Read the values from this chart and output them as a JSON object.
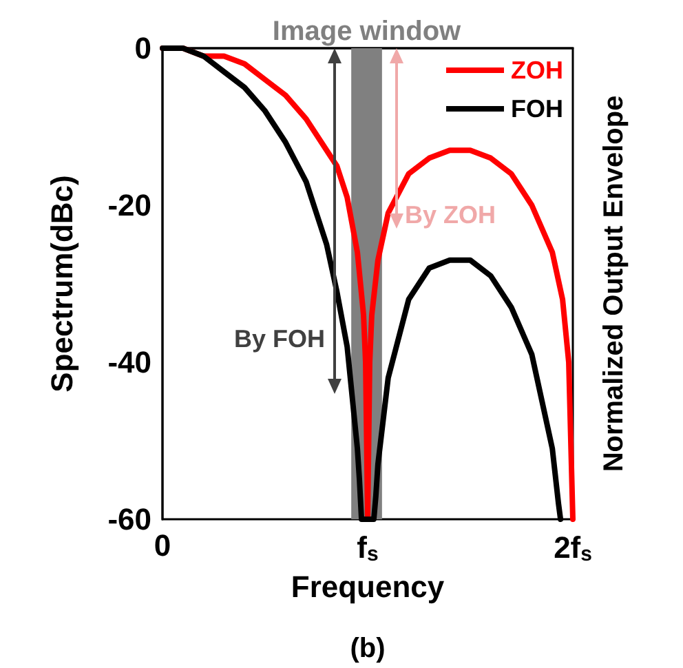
{
  "chart_data": {
    "type": "line",
    "xlabel": "Frequency",
    "ylabel": "Spectrum(dBc)",
    "y2label": "Normalized Output Envelope",
    "x": [
      0,
      0.1,
      0.2,
      0.3,
      0.4,
      0.5,
      0.6,
      0.7,
      0.8,
      0.85,
      0.9,
      0.95,
      0.98,
      0.99,
      1.0,
      1.01,
      1.02,
      1.05,
      1.1,
      1.2,
      1.3,
      1.4,
      1.5,
      1.6,
      1.7,
      1.8,
      1.9,
      1.95,
      1.98,
      2.0
    ],
    "series": [
      {
        "name": "ZOH",
        "color": "#ff0000",
        "values": [
          0,
          0,
          -1,
          -1,
          -2,
          -4,
          -6,
          -9,
          -13,
          -15,
          -19,
          -26,
          -34,
          -40,
          -60,
          -40,
          -34,
          -27,
          -21,
          -16,
          -14,
          -13,
          -13,
          -14,
          -16,
          -20,
          -26,
          -32,
          -40,
          -60
        ]
      },
      {
        "name": "FOH",
        "color": "#000000",
        "x": [
          0,
          0.1,
          0.2,
          0.3,
          0.4,
          0.5,
          0.6,
          0.7,
          0.8,
          0.85,
          0.9,
          0.95,
          0.96,
          0.97,
          1.03,
          1.04,
          1.05,
          1.1,
          1.2,
          1.3,
          1.4,
          1.5,
          1.6,
          1.7,
          1.8,
          1.9,
          1.93,
          1.94
        ],
        "values": [
          0,
          0,
          -1,
          -3,
          -5,
          -8,
          -12,
          -17,
          -25,
          -31,
          -38,
          -51,
          -55,
          -60,
          -60,
          -57,
          -53,
          -42,
          -32,
          -28,
          -27,
          -27,
          -29,
          -33,
          -39,
          -51,
          -58,
          -60
        ]
      }
    ],
    "xlim": [
      0,
      2
    ],
    "xticks": [
      {
        "value": 0,
        "label": "0"
      },
      {
        "value": 1,
        "label": "f$_{s}$"
      },
      {
        "value": 2,
        "label": "2f$_{s}$"
      }
    ],
    "ylim": [
      -60,
      0
    ],
    "yticks": [
      0,
      -20,
      -40,
      -60
    ],
    "bands": [
      {
        "axis": "x",
        "from": 0.92,
        "to": 1.07,
        "label": "Image window",
        "color": "#808080"
      }
    ],
    "annotations": [
      "By FOH",
      "By ZOH",
      "(b)"
    ],
    "legend": "top right",
    "grid": false,
    "marker": "none",
    "line_style": "solid"
  }
}
